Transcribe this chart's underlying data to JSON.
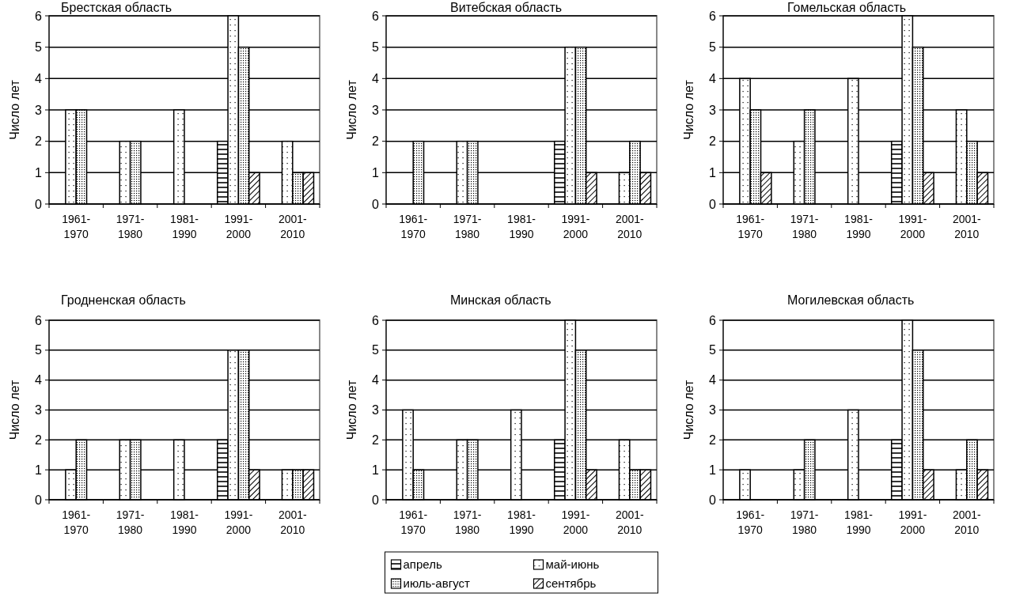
{
  "chart_data": [
    {
      "type": "bar",
      "title": "Брестская область",
      "ylabel": "Число лет",
      "categories": [
        "1961-1970",
        "1971-1980",
        "1981-1990",
        "1991-2000",
        "2001-2010"
      ],
      "ylim": [
        0,
        6
      ],
      "yticks": [
        0,
        1,
        2,
        3,
        4,
        5,
        6
      ],
      "grid": "y",
      "legend": false,
      "series": [
        {
          "color": "#000000",
          "values": [
            0,
            0,
            0,
            2,
            0
          ]
        },
        {
          "color": "#000000",
          "values": [
            3,
            2,
            3,
            6,
            2
          ]
        },
        {
          "color": "#000000",
          "values": [
            3,
            2,
            0,
            5,
            1
          ]
        },
        {
          "color": "#000000",
          "values": [
            0,
            0,
            0,
            1,
            1
          ]
        }
      ]
    },
    {
      "type": "bar",
      "title": "Витебская область",
      "ylabel": "Число лет",
      "categories": [
        "1961-1970",
        "1971-1980",
        "1981-1990",
        "1991-2000",
        "2001-2010"
      ],
      "ylim": [
        0,
        6
      ],
      "yticks": [
        0,
        1,
        2,
        3,
        4,
        5,
        6
      ],
      "grid": "y",
      "legend": false,
      "series": [
        {
          "color": "#000000",
          "values": [
            0,
            0,
            0,
            2,
            0
          ]
        },
        {
          "color": "#000000",
          "values": [
            0,
            2,
            0,
            5,
            1
          ]
        },
        {
          "color": "#000000",
          "values": [
            2,
            2,
            0,
            5,
            2
          ]
        },
        {
          "color": "#000000",
          "values": [
            0,
            0,
            0,
            1,
            1
          ]
        }
      ]
    },
    {
      "type": "bar",
      "title": "Гомельская область",
      "ylabel": "Число лет",
      "categories": [
        "1961-1970",
        "1971-1980",
        "1981-1990",
        "1991-2000",
        "2001-2010"
      ],
      "ylim": [
        0,
        6
      ],
      "yticks": [
        0,
        1,
        2,
        3,
        4,
        5,
        6
      ],
      "grid": "y",
      "legend": false,
      "series": [
        {
          "color": "#000000",
          "values": [
            0,
            0,
            0,
            2,
            0
          ]
        },
        {
          "color": "#000000",
          "values": [
            4,
            2,
            4,
            6,
            3
          ]
        },
        {
          "color": "#000000",
          "values": [
            3,
            3,
            0,
            5,
            2
          ]
        },
        {
          "color": "#000000",
          "values": [
            1,
            0,
            0,
            1,
            1
          ]
        }
      ]
    },
    {
      "type": "bar",
      "title": "Гродненская область",
      "ylabel": "Число лет",
      "categories": [
        "1961-1970",
        "1971-1980",
        "1981-1990",
        "1991-2000",
        "2001-2010"
      ],
      "ylim": [
        0,
        6
      ],
      "yticks": [
        0,
        1,
        2,
        3,
        4,
        5,
        6
      ],
      "grid": "y",
      "legend": false,
      "series": [
        {
          "color": "#000000",
          "values": [
            0,
            0,
            0,
            2,
            0
          ]
        },
        {
          "color": "#000000",
          "values": [
            1,
            2,
            2,
            5,
            1
          ]
        },
        {
          "color": "#000000",
          "values": [
            2,
            2,
            0,
            5,
            1
          ]
        },
        {
          "color": "#000000",
          "values": [
            0,
            0,
            0,
            1,
            1
          ]
        }
      ]
    },
    {
      "type": "bar",
      "title": "Минская область",
      "ylabel": "Число лет",
      "categories": [
        "1961-1970",
        "1971-1980",
        "1981-1990",
        "1991-2000",
        "2001-2010"
      ],
      "ylim": [
        0,
        6
      ],
      "yticks": [
        0,
        1,
        2,
        3,
        4,
        5,
        6
      ],
      "grid": "y",
      "legend": "bottom",
      "series": [
        {
          "name": "апрель",
          "color": "#000000",
          "values": [
            0,
            0,
            0,
            2,
            0
          ]
        },
        {
          "name": "май-июнь",
          "color": "#000000",
          "values": [
            3,
            2,
            3,
            6,
            2
          ]
        },
        {
          "name": "июль-август",
          "color": "#000000",
          "values": [
            1,
            2,
            0,
            5,
            1
          ]
        },
        {
          "name": "сентябрь",
          "color": "#000000",
          "values": [
            0,
            0,
            0,
            1,
            1
          ]
        }
      ]
    },
    {
      "type": "bar",
      "title": "Могилевская область",
      "ylabel": "Число лет",
      "categories": [
        "1961-1970",
        "1971-1980",
        "1981-1990",
        "1991-2000",
        "2001-2010"
      ],
      "ylim": [
        0,
        6
      ],
      "yticks": [
        0,
        1,
        2,
        3,
        4,
        5,
        6
      ],
      "grid": "y",
      "legend": false,
      "series": [
        {
          "color": "#000000",
          "values": [
            0,
            0,
            0,
            2,
            0
          ]
        },
        {
          "color": "#000000",
          "values": [
            1,
            1,
            3,
            6,
            1
          ]
        },
        {
          "color": "#000000",
          "values": [
            0,
            2,
            0,
            5,
            2
          ]
        },
        {
          "color": "#000000",
          "values": [
            0,
            0,
            0,
            1,
            1
          ]
        }
      ]
    }
  ]
}
